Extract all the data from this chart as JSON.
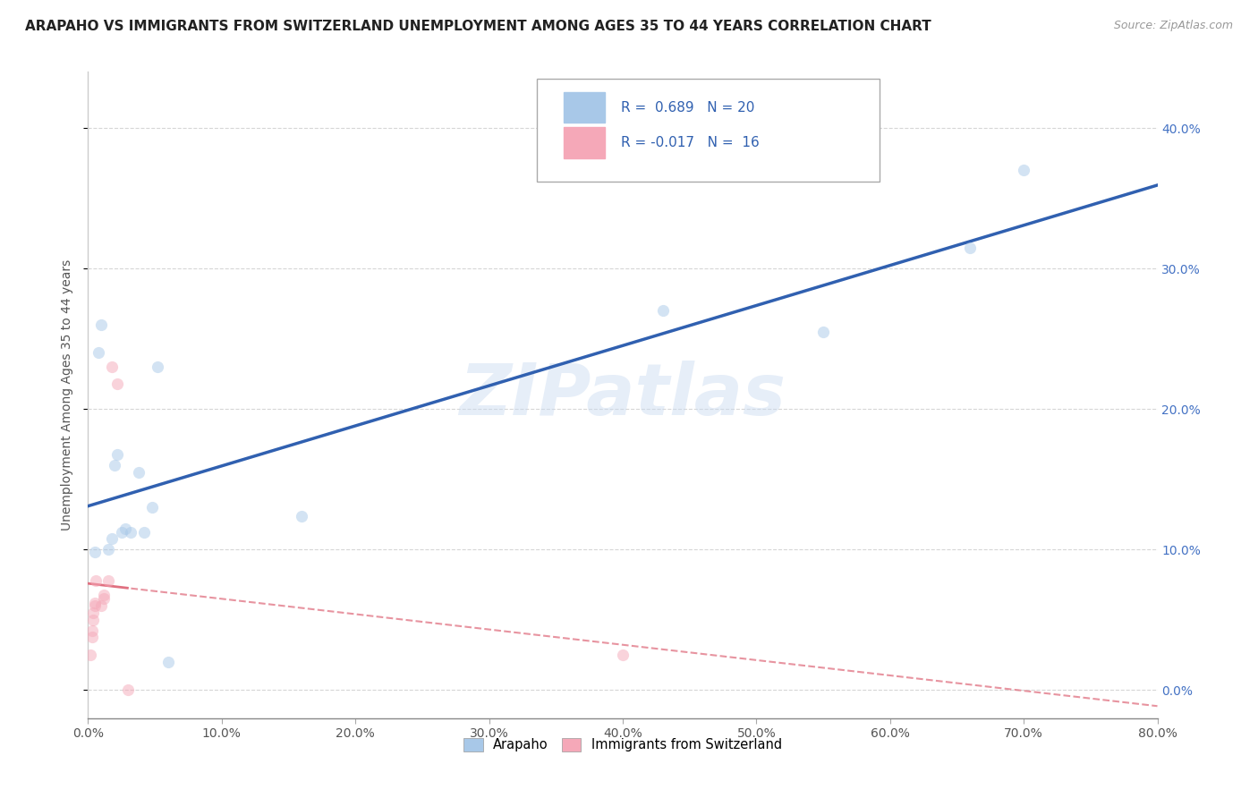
{
  "title": "ARAPAHO VS IMMIGRANTS FROM SWITZERLAND UNEMPLOYMENT AMONG AGES 35 TO 44 YEARS CORRELATION CHART",
  "source_text": "Source: ZipAtlas.com",
  "ylabel": "Unemployment Among Ages 35 to 44 years",
  "watermark": "ZIPatlas",
  "legend_r1": "R =  0.689",
  "legend_n1": "N = 20",
  "legend_r2": "R = -0.017",
  "legend_n2": "N =  16",
  "series1_label": "Arapaho",
  "series2_label": "Immigrants from Switzerland",
  "series1_color": "#a8c8e8",
  "series2_color": "#f5a8b8",
  "line1_color": "#3060b0",
  "line2_color": "#e07080",
  "xlim": [
    0.0,
    0.8
  ],
  "ylim": [
    -0.02,
    0.44
  ],
  "xticks": [
    0.0,
    0.1,
    0.2,
    0.3,
    0.4,
    0.5,
    0.6,
    0.7,
    0.8
  ],
  "yticks": [
    0.0,
    0.1,
    0.2,
    0.3,
    0.4
  ],
  "arapaho_x": [
    0.005,
    0.008,
    0.01,
    0.015,
    0.018,
    0.02,
    0.022,
    0.025,
    0.028,
    0.032,
    0.038,
    0.042,
    0.048,
    0.052,
    0.06,
    0.16,
    0.43,
    0.55,
    0.66,
    0.7
  ],
  "arapaho_y": [
    0.098,
    0.24,
    0.26,
    0.1,
    0.108,
    0.16,
    0.168,
    0.112,
    0.115,
    0.112,
    0.155,
    0.112,
    0.13,
    0.23,
    0.02,
    0.124,
    0.27,
    0.255,
    0.315,
    0.37
  ],
  "swiss_x": [
    0.002,
    0.003,
    0.003,
    0.004,
    0.004,
    0.005,
    0.005,
    0.006,
    0.01,
    0.012,
    0.012,
    0.015,
    0.018,
    0.022,
    0.03,
    0.4
  ],
  "swiss_y": [
    0.025,
    0.038,
    0.042,
    0.05,
    0.055,
    0.06,
    0.062,
    0.078,
    0.06,
    0.065,
    0.068,
    0.078,
    0.23,
    0.218,
    0.0,
    0.025
  ],
  "title_fontsize": 11,
  "axis_label_fontsize": 10,
  "tick_fontsize": 10,
  "source_fontsize": 9,
  "legend_fontsize": 11,
  "marker_size": 90,
  "marker_alpha": 0.5,
  "background_color": "#ffffff",
  "grid_color": "#cccccc",
  "grid_style": "--",
  "grid_alpha": 0.8,
  "ytick_color": "#4472c4",
  "xtick_color": "#555555"
}
